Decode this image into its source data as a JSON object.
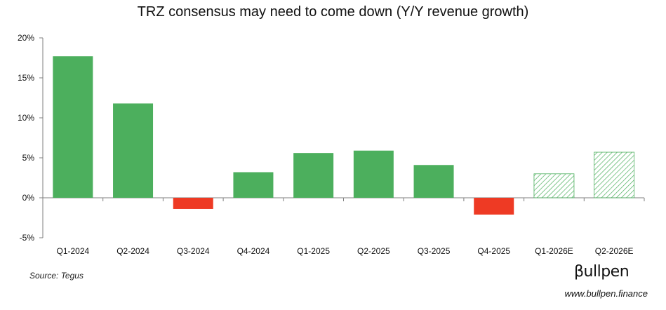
{
  "chart_data": {
    "type": "bar",
    "title": "TRZ consensus may need to come down (Y/Y revenue growth)",
    "xlabel": "",
    "ylabel": "",
    "ylim": [
      -5,
      20
    ],
    "yticks": [
      20,
      15,
      10,
      5,
      0,
      -5
    ],
    "ytick_labels": [
      "20%",
      "15%",
      "10%",
      "5%",
      "0%",
      "-5%"
    ],
    "categories": [
      "Q1-2024",
      "Q2-2024",
      "Q3-2024",
      "Q4-2024",
      "Q1-2025",
      "Q2-2025",
      "Q3-2025",
      "Q4-2025",
      "Q1-2026E",
      "Q2-2026E"
    ],
    "values": [
      17.7,
      11.8,
      -1.4,
      3.2,
      5.6,
      5.9,
      4.1,
      -2.1,
      3.0,
      5.7
    ],
    "estimate": [
      false,
      false,
      false,
      false,
      false,
      false,
      false,
      false,
      true,
      true
    ],
    "colors": {
      "positive": "#4caf5d",
      "negative": "#ee3a24",
      "estimate": "#4caf5d"
    },
    "grid": false,
    "legend": "none"
  },
  "footer": {
    "source": "Source: Tegus",
    "brand": "βullpen",
    "website": "www.bullpen.finance"
  }
}
